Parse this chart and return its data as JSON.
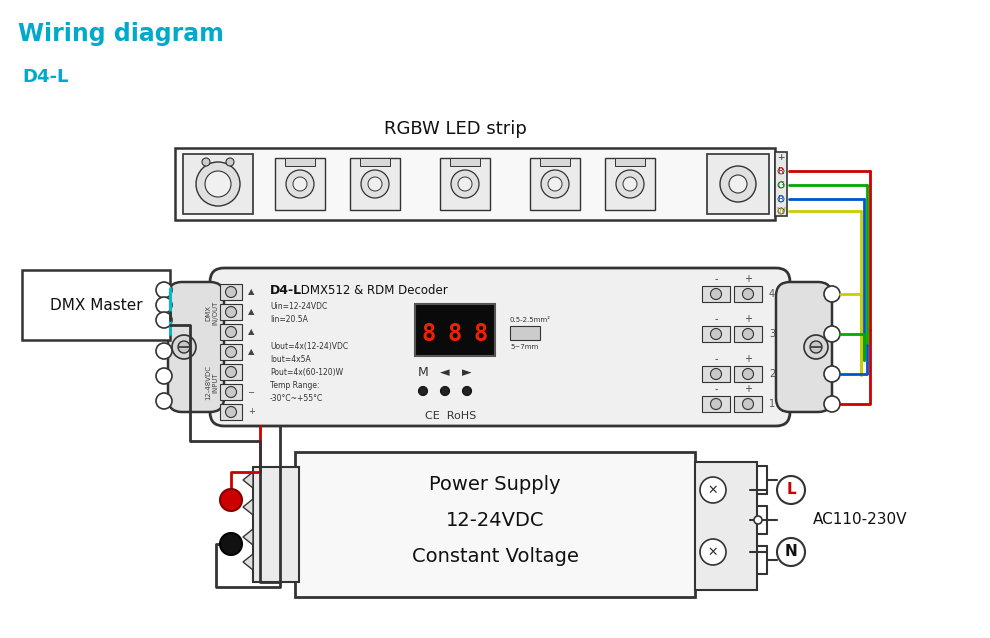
{
  "title": "Wiring diagram",
  "subtitle": "D4-L",
  "title_color": "#00AACC",
  "subtitle_color": "#00AACC",
  "bg_color": "#FFFFFF",
  "rgbw_label": "RGBW LED strip",
  "dmx_label": "DMX Master",
  "ps_line1": "Power Supply",
  "ps_line2": "12-24VDC",
  "ps_line3": "Constant Voltage",
  "ac_label": "AC110-230V",
  "decoder_title_bold": "D4-L",
  "decoder_title_rest": " DMX512 & RDM Decoder",
  "decoder_specs": "Uin=12-24VDC\nIin=20.5A\n\nUout=4x(12-24)VDC\nIout=4x5A\nPout=4x(60-120)W\nTemp Range:\n-30°C~+55°C",
  "wire_colors": {
    "red": "#CC0000",
    "green": "#00AA00",
    "blue": "#0055CC",
    "yellow": "#CCCC00",
    "cyan": "#00BBCC",
    "black": "#111111",
    "white": "#CCCCCC"
  },
  "lc": "#333333",
  "strip_fill": "#F8F8F8",
  "decoder_fill": "#F0F0F0",
  "ps_fill": "#F8F8F8",
  "cap_fill": "#E0E0E0",
  "connector_fill": "#DDDDDD"
}
